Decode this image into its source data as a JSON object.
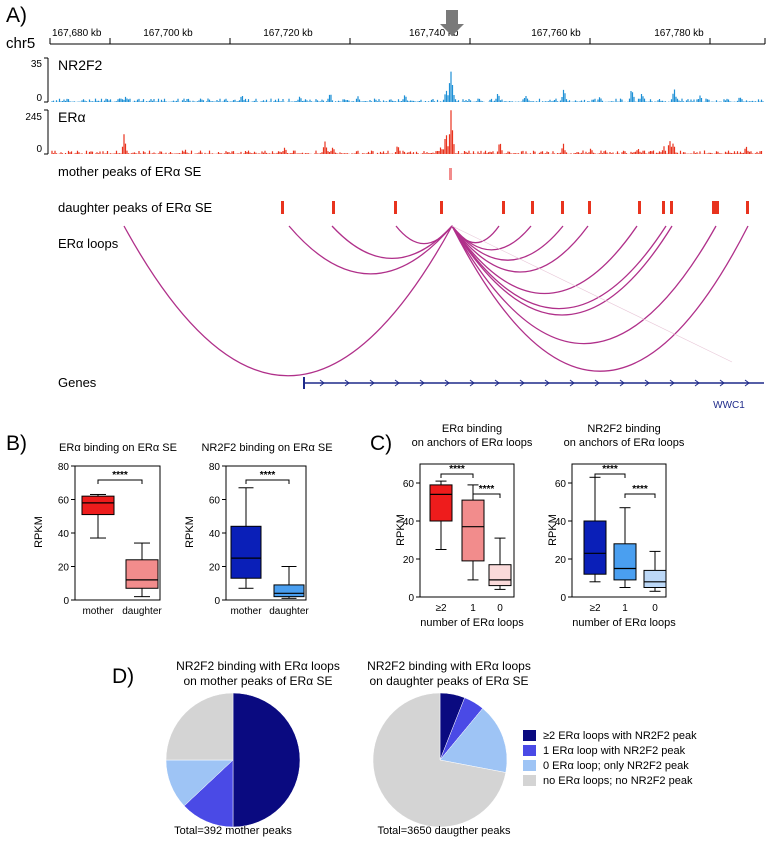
{
  "colors": {
    "nr2f2_track": "#1e90d6",
    "era_track": "#e8331e",
    "mother_peak": "#f28c8c",
    "daughter_peak": "#e8331e",
    "loop": "#b0308a",
    "gene": "#1e2a8a",
    "arrow": "#7a7a7a"
  },
  "panelA": {
    "label": "A)",
    "chrom": "chr5",
    "ticks": [
      "167,680 kb",
      "167,700 kb",
      "167,720 kb",
      "167,740 kb",
      "167,760 kb",
      "167,780 kb"
    ],
    "tracks": [
      {
        "name": "NR2F2",
        "max": "35",
        "min": "0"
      },
      {
        "name": "ERα",
        "max": "245",
        "min": "0"
      }
    ],
    "mother_label": "mother peaks of ERα SE",
    "daughter_label": "daughter peaks of ERα SE",
    "loops_label": "ERα loops",
    "genes_label": "Genes",
    "gene_name": "WWC1"
  },
  "panelB": {
    "label": "B)",
    "charts": [
      {
        "title": "ERα binding on ERα SE",
        "ylabel": "RPKM"
      },
      {
        "title": "NR2F2 binding on ERα SE",
        "ylabel": "RPKM"
      }
    ]
  },
  "panelC": {
    "label": "C)",
    "charts": [
      {
        "title": [
          "ERα binding",
          "on anchors of ERα loops"
        ],
        "ylabel": "RPKM",
        "xlabel": "number of ERα loops"
      },
      {
        "title": [
          "NR2F2 binding",
          "on anchors of ERα loops"
        ],
        "ylabel": "RPKM",
        "xlabel": "number of ERα loops"
      }
    ]
  },
  "panelD": {
    "label": "D)",
    "charts": [
      {
        "title": [
          "NR2F2 binding with ERα loops",
          "on mother peaks of ERα SE"
        ],
        "total": "Total=392 mother peaks"
      },
      {
        "title": [
          "NR2F2 binding with ERα loops",
          "on daughter peaks of ERα SE"
        ],
        "total": "Total=3650 daugther peaks"
      }
    ],
    "legend": [
      {
        "label": "≥2 ERα loops with NR2F2 peak",
        "color": "#0a0a80"
      },
      {
        "label": "1 ERα loop with NR2F2 peak",
        "color": "#4a4ae6"
      },
      {
        "label": "0 ERα loop; only NR2F2 peak",
        "color": "#9ec4f5"
      },
      {
        "label": "no ERα loops; no NR2F2 peak",
        "color": "#d4d4d4"
      }
    ]
  },
  "chart_data": [
    {
      "type": "box",
      "title": "ERα binding on ERα SE",
      "ylabel": "RPKM",
      "ylim": [
        0,
        80
      ],
      "yticks": [
        0,
        20,
        40,
        60,
        80
      ],
      "categories": [
        "mother",
        "daughter"
      ],
      "boxes": [
        {
          "min": 37,
          "q1": 51,
          "median": 58,
          "q3": 62,
          "max": 63,
          "color": "#ee1c1c"
        },
        {
          "min": 2,
          "q1": 7,
          "median": 12,
          "q3": 24,
          "max": 34,
          "color": "#f28c8c"
        }
      ],
      "significance": [
        {
          "from": 0,
          "to": 1,
          "text": "****"
        }
      ]
    },
    {
      "type": "box",
      "title": "NR2F2 binding on ERα SE",
      "ylabel": "RPKM",
      "ylim": [
        0,
        80
      ],
      "yticks": [
        0,
        20,
        40,
        60,
        80
      ],
      "categories": [
        "mother",
        "daughter"
      ],
      "boxes": [
        {
          "min": 7,
          "q1": 13,
          "median": 25,
          "q3": 44,
          "max": 67,
          "color": "#0a1fb8"
        },
        {
          "min": 1,
          "q1": 2,
          "median": 4,
          "q3": 9,
          "max": 20,
          "color": "#4a9ff0"
        }
      ],
      "significance": [
        {
          "from": 0,
          "to": 1,
          "text": "****"
        }
      ]
    },
    {
      "type": "box",
      "title": "ERα binding on anchors of ERα loops",
      "ylabel": "RPKM",
      "xlabel": "number of ERα loops",
      "ylim": [
        0,
        70
      ],
      "yticks": [
        0,
        20,
        40,
        60
      ],
      "categories": [
        "≥2",
        "1",
        "0"
      ],
      "boxes": [
        {
          "min": 25,
          "q1": 40,
          "median": 54,
          "q3": 59,
          "max": 61,
          "color": "#ee1c1c"
        },
        {
          "min": 9,
          "q1": 19,
          "median": 37,
          "q3": 51,
          "max": 59,
          "color": "#f28c8c"
        },
        {
          "min": 4,
          "q1": 6,
          "median": 9,
          "q3": 17,
          "max": 31,
          "color": "#fadada"
        }
      ],
      "significance": [
        {
          "from": 0,
          "to": 1,
          "text": "****"
        },
        {
          "from": 1,
          "to": 2,
          "text": "****"
        }
      ]
    },
    {
      "type": "box",
      "title": "NR2F2 binding on anchors of ERα loops",
      "ylabel": "RPKM",
      "xlabel": "number of ERα loops",
      "ylim": [
        0,
        70
      ],
      "yticks": [
        0,
        20,
        40,
        60
      ],
      "categories": [
        "≥2",
        "1",
        "0"
      ],
      "boxes": [
        {
          "min": 8,
          "q1": 12,
          "median": 23,
          "q3": 40,
          "max": 63,
          "color": "#0a1fb8"
        },
        {
          "min": 5,
          "q1": 9,
          "median": 15,
          "q3": 28,
          "max": 47,
          "color": "#4a9ff0"
        },
        {
          "min": 3,
          "q1": 5,
          "median": 8,
          "q3": 14,
          "max": 24,
          "color": "#bcd8f7"
        }
      ],
      "significance": [
        {
          "from": 0,
          "to": 1,
          "text": "****"
        },
        {
          "from": 1,
          "to": 2,
          "text": "****"
        }
      ]
    },
    {
      "type": "pie",
      "title": "NR2F2 binding with ERα loops on mother peaks of ERα SE",
      "labels": [
        "≥2 ERα loops with NR2F2 peak",
        "1 ERα loop with NR2F2 peak",
        "0 ERα loop; only NR2F2 peak",
        "no ERα loops; no NR2F2 peak"
      ],
      "values": [
        50,
        13,
        12,
        25
      ]
    },
    {
      "type": "pie",
      "title": "NR2F2 binding with ERα loops on daughter peaks of ERα SE",
      "labels": [
        "≥2 ERα loops with NR2F2 peak",
        "1 ERα loop with NR2F2 peak",
        "0 ERα loop; only NR2F2 peak",
        "no ERα loops; no NR2F2 peak"
      ],
      "values": [
        6,
        5,
        17,
        72
      ]
    }
  ]
}
